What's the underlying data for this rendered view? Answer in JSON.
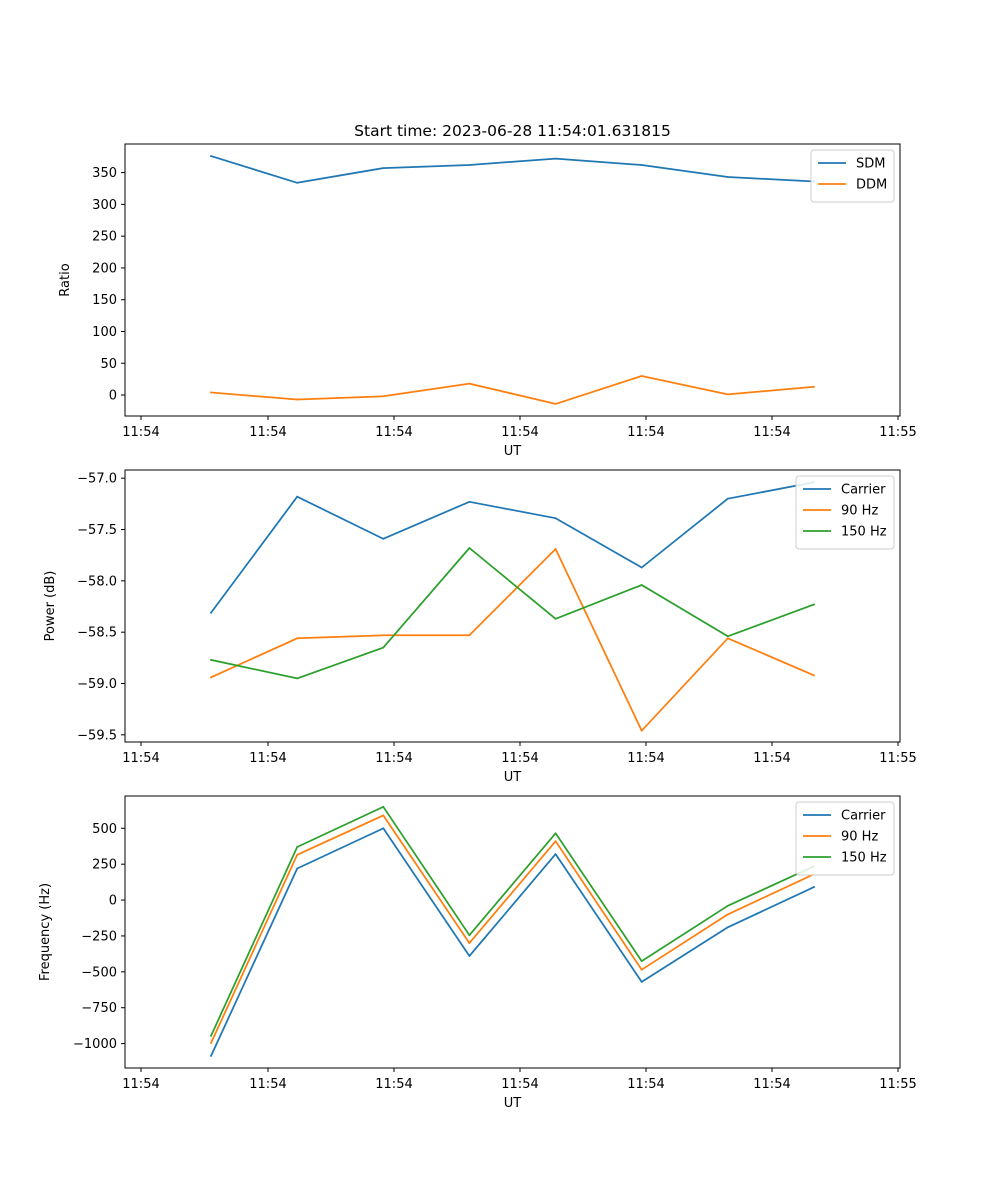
{
  "chart_data": [
    {
      "type": "line",
      "title": "Start time: 2023-06-28 11:54:01.631815",
      "xlabel": "UT",
      "ylabel": "Ratio",
      "x": [
        "11:54:02.6",
        "11:54:03.6",
        "11:54:04.6",
        "11:54:05.6",
        "11:54:06.6",
        "11:54:07.6",
        "11:54:08.6",
        "11:54:09.6"
      ],
      "xlim": [
        "11:54:01.6",
        "11:54:10.6"
      ],
      "xticks": [
        "11:54",
        "11:54",
        "11:54",
        "11:54",
        "11:54",
        "11:54",
        "11:55"
      ],
      "ylim": [
        -33,
        395
      ],
      "yticks": [
        0,
        50,
        100,
        150,
        200,
        250,
        300,
        350
      ],
      "legend": "top-right",
      "series": [
        {
          "name": "SDM",
          "color": "#1f77b4",
          "values": [
            376,
            334,
            357,
            362,
            372,
            362,
            343,
            336
          ]
        },
        {
          "name": "DDM",
          "color": "#ff7f0e",
          "values": [
            4,
            -7,
            -2,
            18,
            -14,
            30,
            1,
            13
          ]
        }
      ]
    },
    {
      "type": "line",
      "title": "",
      "xlabel": "UT",
      "ylabel": "Power (dB)",
      "x": [
        "11:54:02.6",
        "11:54:03.6",
        "11:54:04.6",
        "11:54:05.6",
        "11:54:06.6",
        "11:54:07.6",
        "11:54:08.6",
        "11:54:09.6"
      ],
      "xlim": [
        "11:54:01.6",
        "11:54:10.6"
      ],
      "xticks": [
        "11:54",
        "11:54",
        "11:54",
        "11:54",
        "11:54",
        "11:54",
        "11:55"
      ],
      "ylim": [
        -59.57,
        -56.92
      ],
      "yticks": [
        "-57.0",
        "-57.5",
        "-58.0",
        "-58.5",
        "-59.0",
        "-59.5"
      ],
      "legend": "top-right",
      "series": [
        {
          "name": "Carrier",
          "color": "#1f77b4",
          "values": [
            -58.31,
            -57.18,
            -57.59,
            -57.23,
            -57.39,
            -57.87,
            -57.2,
            -57.04
          ]
        },
        {
          "name": "90 Hz",
          "color": "#ff7f0e",
          "values": [
            -58.94,
            -58.56,
            -58.53,
            -58.53,
            -57.69,
            -59.46,
            -58.56,
            -58.92
          ]
        },
        {
          "name": "150 Hz",
          "color": "#2ca02c",
          "values": [
            -58.77,
            -58.95,
            -58.65,
            -57.68,
            -58.37,
            -58.04,
            -58.54,
            -58.23
          ]
        }
      ]
    },
    {
      "type": "line",
      "title": "",
      "xlabel": "UT",
      "ylabel": "Frequency (Hz)",
      "x": [
        "11:54:02.6",
        "11:54:03.6",
        "11:54:04.6",
        "11:54:05.6",
        "11:54:06.6",
        "11:54:07.6",
        "11:54:08.6",
        "11:54:09.6"
      ],
      "xlim": [
        "11:54:01.6",
        "11:54:10.6"
      ],
      "xticks": [
        "11:54",
        "11:54",
        "11:54",
        "11:54",
        "11:54",
        "11:54",
        "11:55"
      ],
      "ylim": [
        -1170,
        725
      ],
      "yticks": [
        500,
        250,
        0,
        -250,
        -500,
        -750,
        -1000
      ],
      "legend": "top-right",
      "series": [
        {
          "name": "Carrier",
          "color": "#1f77b4",
          "values": [
            -1085,
            220,
            500,
            -390,
            320,
            -570,
            -190,
            90
          ]
        },
        {
          "name": "90 Hz",
          "color": "#ff7f0e",
          "values": [
            -995,
            315,
            590,
            -300,
            410,
            -485,
            -100,
            180
          ]
        },
        {
          "name": "150 Hz",
          "color": "#2ca02c",
          "values": [
            -945,
            370,
            650,
            -245,
            465,
            -425,
            -40,
            235
          ]
        }
      ]
    }
  ]
}
